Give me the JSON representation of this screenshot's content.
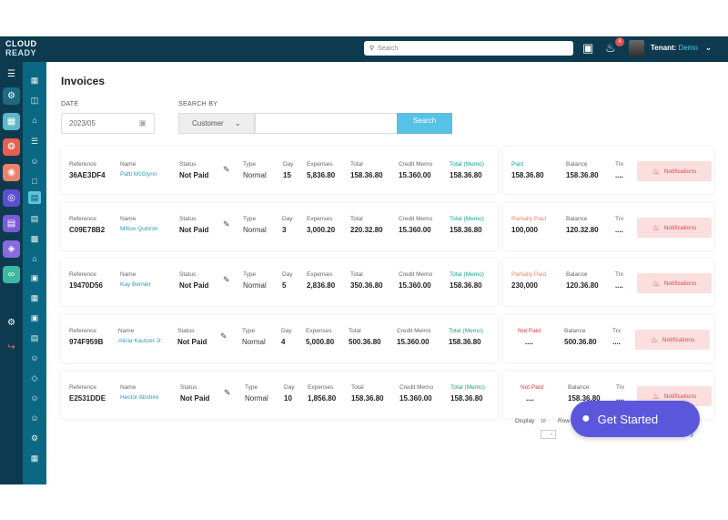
{
  "header": {
    "logo_line1": "CLOUD",
    "logo_line2": "READY",
    "search_placeholder": "Search",
    "notification_count": "4",
    "tenant_label": "Tenant:",
    "tenant_value": "Demo"
  },
  "page": {
    "title": "Invoices",
    "date_label": "DATE",
    "date_value": "2023/05",
    "search_by_label": "SEARCH BY",
    "search_by_value": "Customer",
    "search_button": "Search"
  },
  "labels": {
    "reference": "Reference",
    "name": "Name",
    "status": "Status",
    "type": "Type",
    "day": "Day",
    "expenses": "Expenses",
    "total": "Total",
    "credit_memo": "Credit Memo",
    "total_memo": "Total (Memo)",
    "balance": "Balance",
    "trx": "Trx",
    "notifications": "Notifications"
  },
  "invoices": [
    {
      "reference": "36AE3DF4",
      "name": "Patti McGlynn",
      "status": "Not Paid",
      "type": "Normal",
      "day": "15",
      "expenses": "5,836.80",
      "total": "158.36.80",
      "credit_memo": "15.360.00",
      "total_memo": "158.36.80",
      "payment_label": "Paid",
      "payment_value": "158.36.80",
      "balance": "158.36.80",
      "trx": "...."
    },
    {
      "reference": "C09E78B2",
      "name": "Milton Quitzon",
      "status": "Not Paid",
      "type": "Normal",
      "day": "3",
      "expenses": "3,000.20",
      "total": "220.32.80",
      "credit_memo": "15.360.00",
      "total_memo": "158.36.80",
      "payment_label": "Partially Paid",
      "payment_value": "100,000",
      "balance": "120.32.80",
      "trx": "...."
    },
    {
      "reference": "19470D56",
      "name": "Kay Bernier",
      "status": "Not Paid",
      "type": "Normal",
      "day": "5",
      "expenses": "2,836.80",
      "total": "350.36.80",
      "credit_memo": "15.360.00",
      "total_memo": "158.36.80",
      "payment_label": "Partially Paid",
      "payment_value": "230,000",
      "balance": "120.36.80",
      "trx": "...."
    },
    {
      "reference": "974F959B",
      "name": "Alicia Kautzer Jr.",
      "status": "Not Paid",
      "type": "Normal",
      "day": "4",
      "expenses": "5,000.80",
      "total": "500.36.80",
      "credit_memo": "15.360.00",
      "total_memo": "158.36.80",
      "payment_label": "Not Paid",
      "payment_value": "....",
      "balance": "500.36.80",
      "trx": "...."
    },
    {
      "reference": "E2531DDE",
      "name": "Hector Abshire",
      "status": "Not Paid",
      "type": "Normal",
      "day": "10",
      "expenses": "1,856.80",
      "total": "158.36.80",
      "credit_memo": "15.360.00",
      "total_memo": "158.36.80",
      "payment_label": "Not Paid",
      "payment_value": "....",
      "balance": "158.36.80",
      "trx": "...."
    }
  ],
  "pagination": {
    "display_label": "Display",
    "display_value": "10",
    "rows_label": "Row",
    "page_number": "8"
  },
  "get_started": "Get Started",
  "colors": {
    "topbar": "#0d3a4f",
    "rail_active": "#5ec3dd",
    "teal_text": "#1aa88e",
    "not_paid_red": "#e0383b",
    "partial_orange": "#e8886b",
    "notif_bg": "#fbdede",
    "get_started_bg": "#5b57dc"
  }
}
